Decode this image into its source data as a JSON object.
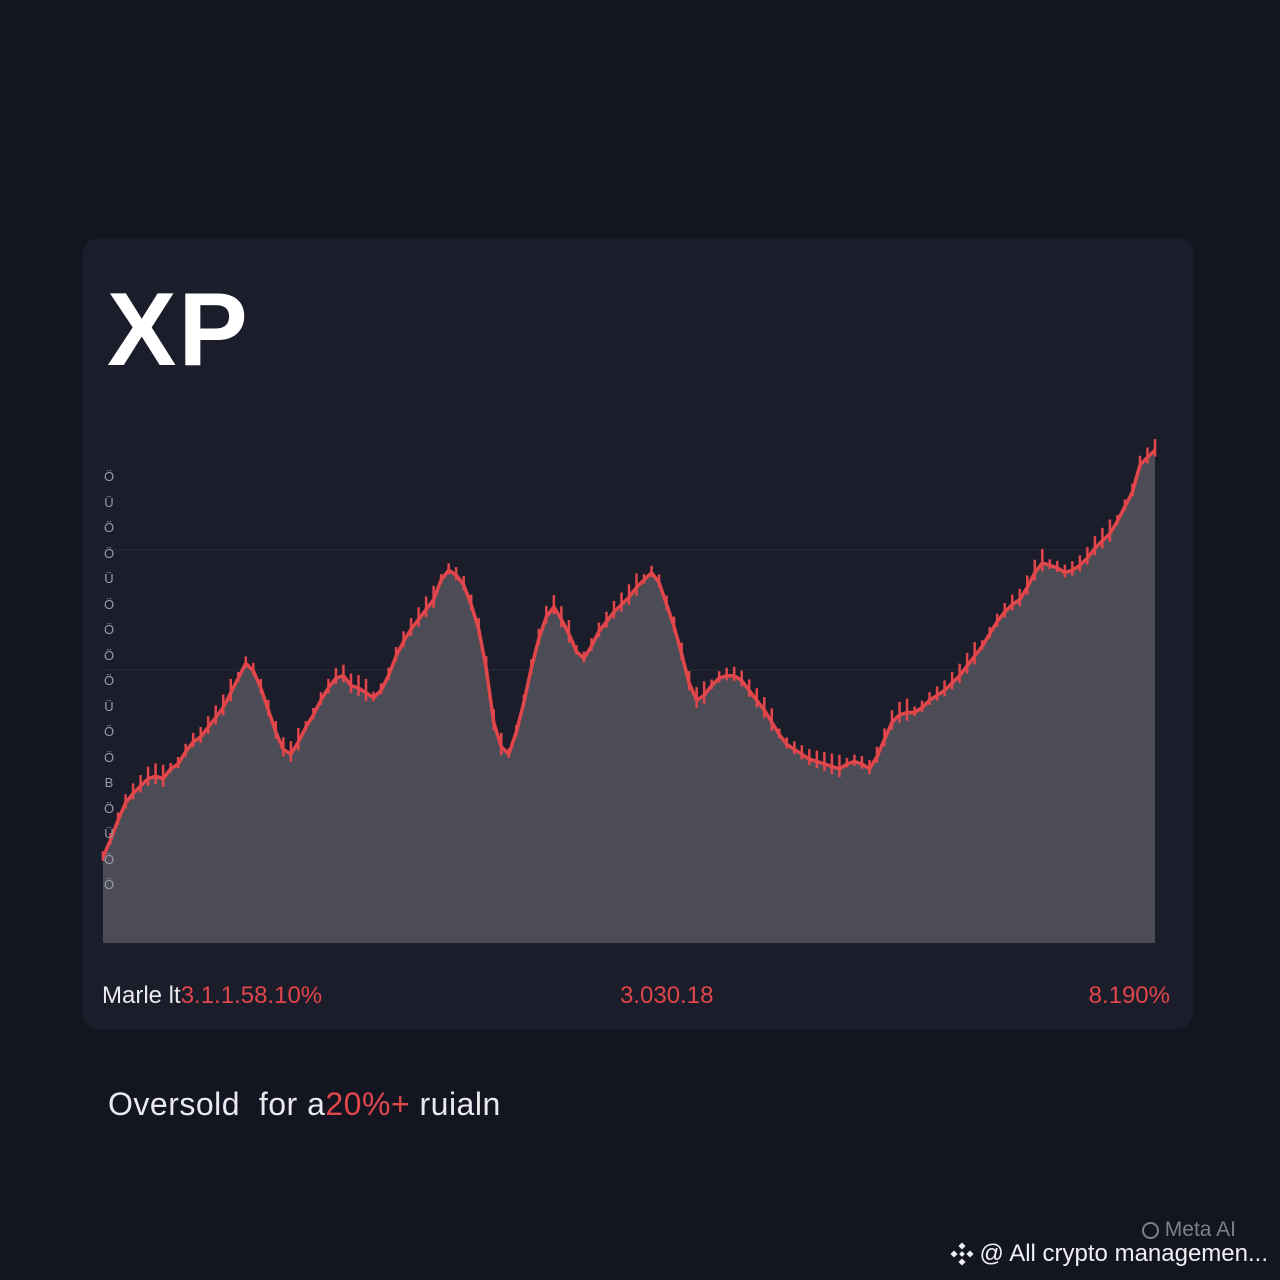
{
  "chart_data": {
    "type": "area",
    "title": "XP",
    "xlabel": "",
    "ylabel": "",
    "grid": true,
    "series": [
      {
        "values": [
          35,
          42,
          50,
          57,
          61,
          64,
          67,
          68,
          67,
          71,
          73,
          78,
          82,
          84,
          88,
          92,
          96,
          102,
          108,
          114,
          111,
          104,
          95,
          86,
          79,
          77,
          82,
          88,
          93,
          99,
          104,
          108,
          109,
          105,
          104,
          102,
          100,
          103,
          109,
          117,
          123,
          128,
          132,
          136,
          140,
          148,
          152,
          150,
          146,
          138,
          128,
          112,
          90,
          80,
          77,
          86,
          98,
          112,
          124,
          133,
          137,
          132,
          126,
          119,
          116,
          121,
          127,
          131,
          135,
          138,
          141,
          145,
          148,
          151,
          147,
          138,
          129,
          118,
          106,
          99,
          101,
          105,
          108,
          109,
          109,
          107,
          103,
          99,
          95,
          90,
          85,
          81,
          79,
          77,
          75,
          74,
          73,
          72,
          71,
          73,
          74,
          73,
          71,
          76,
          83,
          90,
          93,
          94,
          94,
          96,
          99,
          101,
          103,
          106,
          109,
          113,
          117,
          121,
          126,
          131,
          135,
          138,
          140,
          145,
          151,
          155,
          154,
          153,
          151,
          152,
          154,
          157,
          161,
          164,
          167,
          172,
          178,
          184,
          195,
          198,
          201
        ]
      }
    ],
    "y_ticks": [
      "Ö",
      "Ü",
      "Ö",
      "Ö",
      "Ü",
      "Ö",
      "Ö",
      "Ö",
      "Ö",
      "Ü",
      "Ö",
      "Ö",
      "B",
      "Ö",
      "Ü",
      "Ö",
      "Ö"
    ],
    "ylim": [
      0,
      210
    ]
  },
  "stats": {
    "left_label": "Marle lt",
    "left_value": "3.1.1.58.10%",
    "mid_value": "3.030.18",
    "right_value": "8.190%"
  },
  "caption": {
    "before": "Oversold  for a",
    "highlight": "20%+",
    "after": " ruialn"
  },
  "watermark": {
    "meta_label": "Meta AI",
    "source_text": "@ All crypto managemen..."
  },
  "colors": {
    "background": "#131521",
    "card": "#1b1d2a",
    "area_fill": "#4b4c56",
    "line": "#e0464a",
    "accent_red": "#e0464a"
  },
  "icons": {
    "meta": "ring-icon",
    "source": "diamond-icon"
  }
}
